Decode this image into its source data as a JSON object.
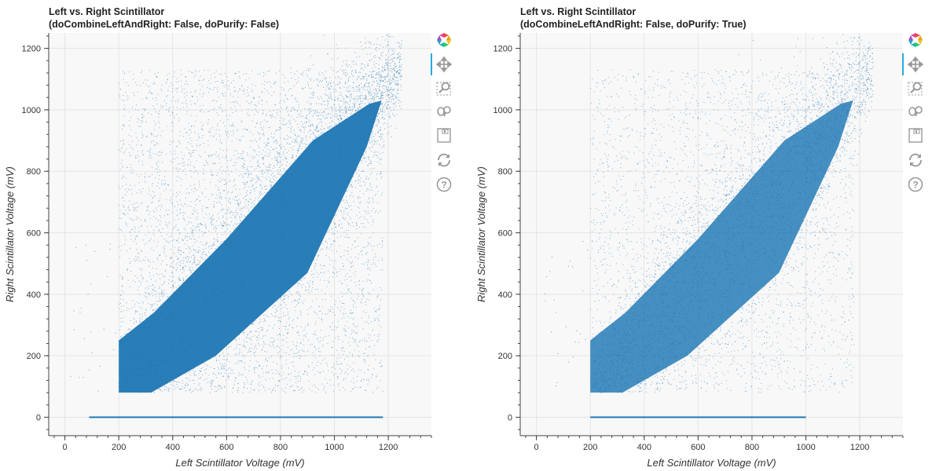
{
  "panels": [
    {
      "title_line1": "Left vs. Right Scintillator",
      "title_line2": "(doCombineLeftAndRight: False, doPurify: False)",
      "tools": [
        "bokeh-logo-icon",
        "pan-icon",
        "box-zoom-icon",
        "wheel-zoom-icon",
        "save-icon",
        "reset-icon",
        "help-icon"
      ]
    },
    {
      "title_line1": "Left vs. Right Scintillator",
      "title_line2": "(doCombineLeftAndRight: False, doPurify: True)",
      "tools": [
        "bokeh-logo-icon",
        "pan-icon",
        "box-zoom-icon",
        "wheel-zoom-icon",
        "save-icon",
        "reset-icon",
        "help-icon"
      ]
    }
  ],
  "chart_data": [
    {
      "type": "scatter",
      "title": "Left vs. Right Scintillator (doCombineLeftAndRight: False, doPurify: False)",
      "xlabel": "Left Scintillator Voltage (mV)",
      "ylabel": "Right Scintillator Voltage (mV)",
      "xlim": [
        -60,
        1360
      ],
      "ylim": [
        -60,
        1250
      ],
      "x_ticks": [
        0,
        200,
        400,
        600,
        800,
        1000,
        1200
      ],
      "y_ticks": [
        0,
        200,
        400,
        600,
        800,
        1000,
        1200
      ],
      "x_tick_labels": [
        "0",
        "200",
        "400",
        "600",
        "800",
        "1000",
        "1200"
      ],
      "y_tick_labels": [
        "0",
        "200",
        "400",
        "600",
        "800",
        "1000",
        "1200"
      ],
      "grid": true,
      "color": "#1f77b4",
      "description_regions": {
        "x_cut_min": 200,
        "y_cut_min": 80,
        "diagonal_band": {
          "x": [
            200,
            1250
          ],
          "y": [
            100,
            1150
          ]
        },
        "zero_line": {
          "y": 0,
          "x": [
            90,
            1180
          ]
        }
      },
      "approx_points_density": "very high"
    },
    {
      "type": "scatter",
      "title": "Left vs. Right Scintillator (doCombineLeftAndRight: False, doPurify: True)",
      "xlabel": "Left Scintillator Voltage (mV)",
      "ylabel": "Right Scintillator Voltage (mV)",
      "xlim": [
        -60,
        1360
      ],
      "ylim": [
        -60,
        1250
      ],
      "x_ticks": [
        0,
        200,
        400,
        600,
        800,
        1000,
        1200
      ],
      "y_ticks": [
        0,
        200,
        400,
        600,
        800,
        1000,
        1200
      ],
      "x_tick_labels": [
        "0",
        "200",
        "400",
        "600",
        "800",
        "1000",
        "1200"
      ],
      "y_tick_labels": [
        "0",
        "200",
        "400",
        "600",
        "800",
        "1000",
        "1200"
      ],
      "grid": true,
      "color": "#1f77b4",
      "description_regions": {
        "x_cut_min": 200,
        "y_cut_min": 80,
        "diagonal_band": {
          "x": [
            200,
            1250
          ],
          "y": [
            100,
            1150
          ]
        },
        "zero_line": {
          "y": 0,
          "x": [
            200,
            1000
          ]
        }
      },
      "approx_points_density": "high"
    }
  ]
}
